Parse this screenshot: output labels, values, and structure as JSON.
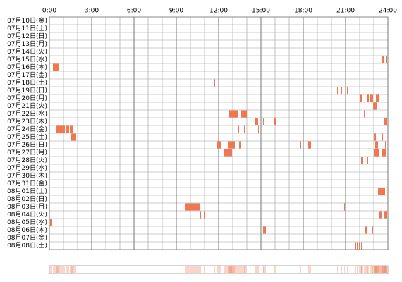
{
  "chart_data": {
    "type": "timeline",
    "color": "#f07850",
    "grid": true,
    "xlim": [
      0,
      24
    ],
    "xticks": [
      {
        "value": 0,
        "label": "0:00"
      },
      {
        "value": 3,
        "label": "3:00"
      },
      {
        "value": 6,
        "label": "6:00"
      },
      {
        "value": 9,
        "label": "9:00"
      },
      {
        "value": 12,
        "label": "12:00"
      },
      {
        "value": 15,
        "label": "15:00"
      },
      {
        "value": 18,
        "label": "18:00"
      },
      {
        "value": 21,
        "label": "21:00"
      },
      {
        "value": 24,
        "label": "24:00"
      }
    ],
    "rows": [
      {
        "label": "07月10日(金)",
        "segments": []
      },
      {
        "label": "07月11日(土)",
        "segments": []
      },
      {
        "label": "07月12日(日)",
        "segments": []
      },
      {
        "label": "07月13日(月)",
        "segments": []
      },
      {
        "label": "07月14日(火)",
        "segments": []
      },
      {
        "label": "07月15日(水)",
        "segments": [
          [
            23.6,
            23.7
          ],
          [
            23.85,
            23.95
          ]
        ]
      },
      {
        "label": "07月16日(木)",
        "segments": [
          [
            0.25,
            0.65
          ]
        ]
      },
      {
        "label": "07月17日(金)",
        "segments": []
      },
      {
        "label": "07月18日(土)",
        "segments": [
          [
            10.8,
            10.85
          ],
          [
            11.7,
            11.75
          ]
        ]
      },
      {
        "label": "07月19日(日)",
        "segments": [
          [
            20.4,
            20.45
          ],
          [
            20.7,
            20.75
          ],
          [
            21.1,
            21.15
          ]
        ]
      },
      {
        "label": "07月20日(月)",
        "segments": [
          [
            22.05,
            22.15
          ],
          [
            22.55,
            22.65
          ],
          [
            22.75,
            22.95
          ],
          [
            23.15,
            23.35
          ]
        ]
      },
      {
        "label": "07月21日(火)",
        "segments": [
          [
            22.95,
            23.25
          ]
        ]
      },
      {
        "label": "07月22日(水)",
        "segments": [
          [
            12.75,
            13.4
          ],
          [
            13.6,
            14.0
          ],
          [
            22.3,
            22.4
          ]
        ]
      },
      {
        "label": "07月23日(木)",
        "segments": [
          [
            14.55,
            14.8
          ],
          [
            15.15,
            15.2
          ],
          [
            15.95,
            16.1
          ],
          [
            23.75,
            23.95
          ]
        ]
      },
      {
        "label": "07月24日(金)",
        "segments": [
          [
            0.5,
            1.1
          ],
          [
            1.2,
            1.4
          ],
          [
            1.45,
            1.65
          ],
          [
            13.4,
            13.45
          ],
          [
            13.8,
            13.85
          ],
          [
            14.8,
            14.85
          ]
        ]
      },
      {
        "label": "07月25日(土)",
        "segments": [
          [
            1.55,
            1.9
          ],
          [
            2.35,
            2.4
          ],
          [
            23.05,
            23.15
          ],
          [
            23.35,
            23.4
          ],
          [
            23.55,
            23.65
          ]
        ]
      },
      {
        "label": "07月26日(日)",
        "segments": [
          [
            11.85,
            12.2
          ],
          [
            12.65,
            13.15
          ],
          [
            13.45,
            13.6
          ],
          [
            17.8,
            17.85
          ],
          [
            18.35,
            18.55
          ],
          [
            23.1,
            23.3
          ],
          [
            23.8,
            23.85
          ]
        ]
      },
      {
        "label": "07月27日(月)",
        "segments": [
          [
            12.4,
            12.95
          ],
          [
            23.05,
            23.35
          ],
          [
            23.55,
            23.85
          ]
        ]
      },
      {
        "label": "07月28日(火)",
        "segments": [
          [
            22.1,
            22.25
          ],
          [
            22.55,
            22.6
          ]
        ]
      },
      {
        "label": "07月29日(水)",
        "segments": []
      },
      {
        "label": "07月30日(木)",
        "segments": []
      },
      {
        "label": "07月31日(金)",
        "segments": [
          [
            11.3,
            11.35
          ],
          [
            13.85,
            13.9
          ]
        ]
      },
      {
        "label": "08月01日(土)",
        "segments": [
          [
            23.3,
            23.8
          ]
        ]
      },
      {
        "label": "08月02日(日)",
        "segments": []
      },
      {
        "label": "08月03日(月)",
        "segments": [
          [
            9.65,
            10.65
          ],
          [
            20.9,
            20.95
          ]
        ]
      },
      {
        "label": "08月04日(火)",
        "segments": [
          [
            10.65,
            10.75
          ],
          [
            10.95,
            11.0
          ],
          [
            23.35,
            23.6
          ],
          [
            23.75,
            23.95
          ]
        ]
      },
      {
        "label": "08月05日(水)",
        "segments": [
          [
            0.05,
            0.2
          ]
        ]
      },
      {
        "label": "08月06日(木)",
        "segments": [
          [
            15.15,
            15.35
          ],
          [
            22.4,
            22.55
          ],
          [
            22.9,
            22.95
          ]
        ]
      },
      {
        "label": "08月07日(金)",
        "segments": []
      },
      {
        "label": "08月08日(土)",
        "segments": [
          [
            21.65,
            21.75
          ],
          [
            21.8,
            21.9
          ],
          [
            21.95,
            22.05
          ],
          [
            22.1,
            22.15
          ]
        ]
      }
    ]
  }
}
